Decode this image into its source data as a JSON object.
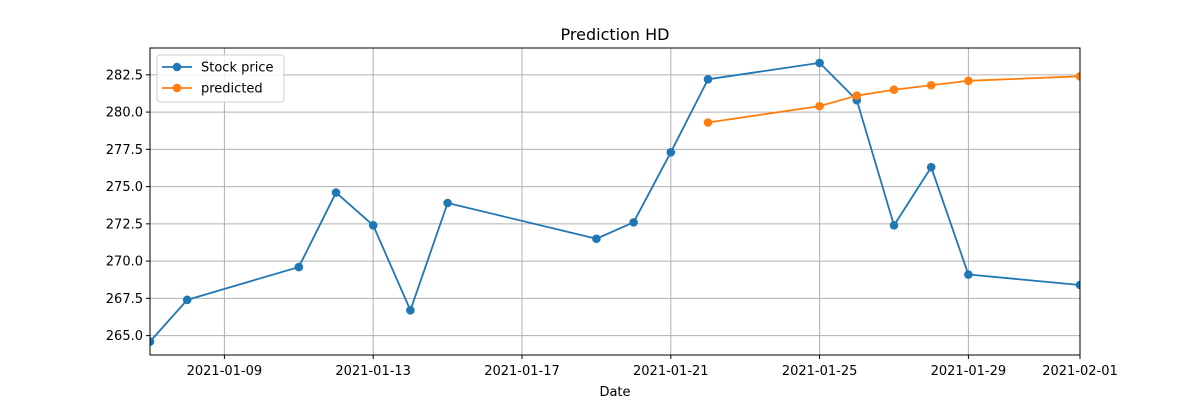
{
  "chart_data": {
    "type": "line",
    "title": "Prediction HD",
    "xlabel": "Date",
    "ylabel": "",
    "xlim": [
      "2021-01-07",
      "2021-02-01"
    ],
    "ylim": [
      263.7,
      284.3
    ],
    "x_ticks": [
      "2021-01-09",
      "2021-01-13",
      "2021-01-17",
      "2021-01-21",
      "2021-01-25",
      "2021-01-29",
      "2021-02-01"
    ],
    "y_ticks": [
      265.0,
      267.5,
      270.0,
      272.5,
      275.0,
      277.5,
      280.0,
      282.5
    ],
    "y_tick_labels": [
      "265.0",
      "267.5",
      "270.0",
      "272.5",
      "275.0",
      "277.5",
      "280.0",
      "282.5"
    ],
    "grid": true,
    "legend_position": "top-left",
    "series": [
      {
        "name": "Stock price",
        "color": "#1f77b4",
        "marker": "circle",
        "x": [
          "2021-01-07",
          "2021-01-08",
          "2021-01-11",
          "2021-01-12",
          "2021-01-13",
          "2021-01-14",
          "2021-01-15",
          "2021-01-19",
          "2021-01-20",
          "2021-01-21",
          "2021-01-22",
          "2021-01-25",
          "2021-01-26",
          "2021-01-27",
          "2021-01-28",
          "2021-01-29",
          "2021-02-01"
        ],
        "values": [
          264.6,
          267.4,
          269.6,
          274.6,
          272.4,
          266.7,
          273.9,
          271.5,
          272.6,
          277.3,
          282.2,
          283.3,
          280.8,
          272.4,
          276.3,
          269.1,
          268.4
        ]
      },
      {
        "name": "predicted",
        "color": "#ff7f0e",
        "marker": "circle",
        "x": [
          "2021-01-22",
          "2021-01-25",
          "2021-01-26",
          "2021-01-27",
          "2021-01-28",
          "2021-01-29",
          "2021-02-01"
        ],
        "values": [
          279.3,
          280.4,
          281.1,
          281.5,
          281.8,
          282.1,
          282.4
        ]
      }
    ]
  }
}
